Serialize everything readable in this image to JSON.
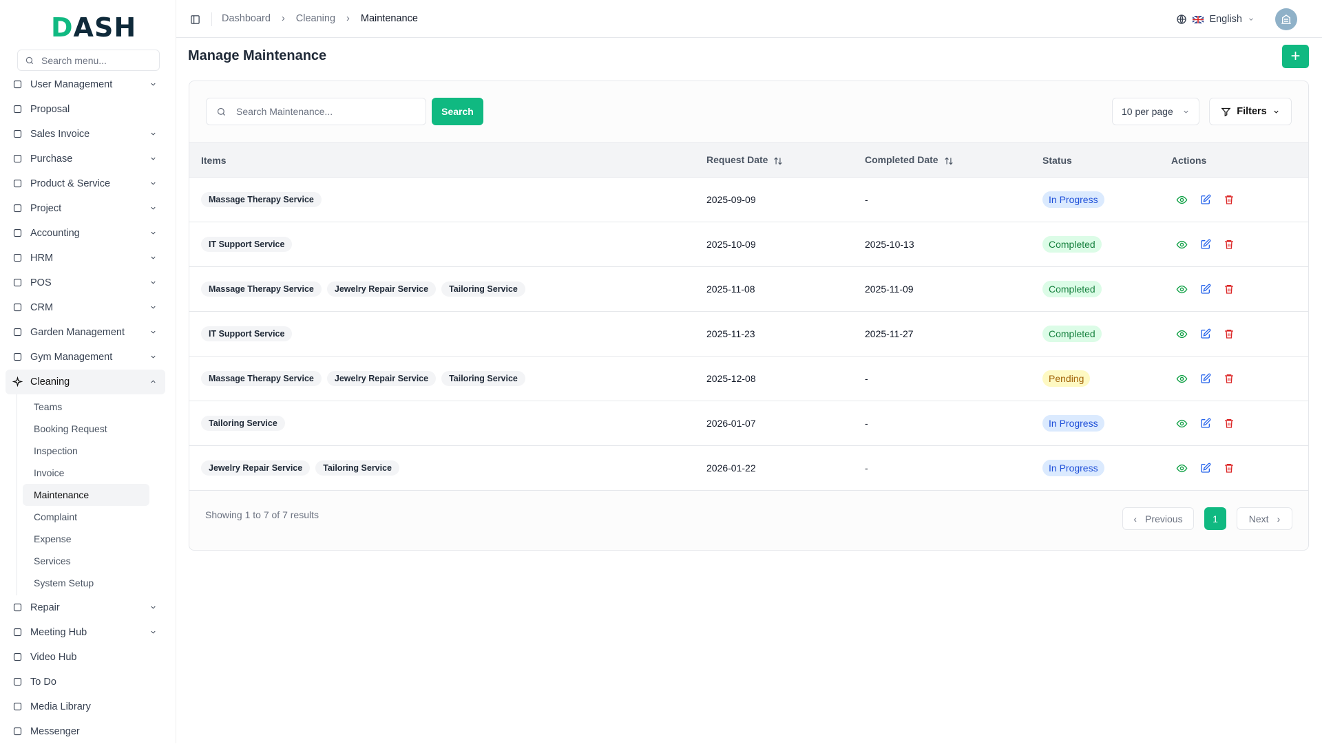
{
  "brand": {
    "logo_text": "DASH"
  },
  "sidebar": {
    "search_placeholder": "Search menu...",
    "items": [
      {
        "label": "User Management",
        "icon": "users-icon",
        "chevron": true
      },
      {
        "label": "Proposal",
        "icon": "proposal-icon",
        "chevron": false
      },
      {
        "label": "Sales Invoice",
        "icon": "invoice-icon",
        "chevron": true
      },
      {
        "label": "Purchase",
        "icon": "cart-icon",
        "chevron": true
      },
      {
        "label": "Product & Service",
        "icon": "layers-icon",
        "chevron": true
      },
      {
        "label": "Project",
        "icon": "folder-icon",
        "chevron": true
      },
      {
        "label": "Accounting",
        "icon": "calculator-icon",
        "chevron": true
      },
      {
        "label": "HRM",
        "icon": "user-cog-icon",
        "chevron": true
      },
      {
        "label": "POS",
        "icon": "store-icon",
        "chevron": true
      },
      {
        "label": "CRM",
        "icon": "contact-icon",
        "chevron": true
      },
      {
        "label": "Garden Management",
        "icon": "sprout-icon",
        "chevron": true
      },
      {
        "label": "Gym Management",
        "icon": "dumbbell-icon",
        "chevron": true
      },
      {
        "label": "Cleaning",
        "icon": "sparkle-icon",
        "chevron": true,
        "open": true
      }
    ],
    "cleaning_sub": [
      "Teams",
      "Booking Request",
      "Inspection",
      "Invoice",
      "Maintenance",
      "Complaint",
      "Expense",
      "Services",
      "System Setup"
    ],
    "active_sub": "Maintenance",
    "items_after": [
      {
        "label": "Repair",
        "icon": "hammer-icon",
        "chevron": true
      },
      {
        "label": "Meeting Hub",
        "icon": "users-icon",
        "chevron": true
      },
      {
        "label": "Video Hub",
        "icon": "video-icon",
        "chevron": false
      },
      {
        "label": "To Do",
        "icon": "checkbox-icon",
        "chevron": false
      },
      {
        "label": "Media Library",
        "icon": "image-icon",
        "chevron": false
      },
      {
        "label": "Messenger",
        "icon": "message-icon",
        "chevron": false
      }
    ]
  },
  "header": {
    "breadcrumb": [
      "Dashboard",
      "Cleaning",
      "Maintenance"
    ],
    "language": "English"
  },
  "page": {
    "title": "Manage Maintenance",
    "search_placeholder": "Search Maintenance...",
    "search_label": "Search",
    "per_page": "10 per page",
    "filters_label": "Filters"
  },
  "table": {
    "columns": [
      "Items",
      "Request Date",
      "Completed Date",
      "Status",
      "Actions"
    ],
    "rows": [
      {
        "items": [
          "Massage Therapy Service"
        ],
        "request": "2025-09-09",
        "completed": "-",
        "status": "In Progress"
      },
      {
        "items": [
          "IT Support Service"
        ],
        "request": "2025-10-09",
        "completed": "2025-10-13",
        "status": "Completed"
      },
      {
        "items": [
          "Massage Therapy Service",
          "Jewelry Repair Service",
          "Tailoring Service"
        ],
        "request": "2025-11-08",
        "completed": "2025-11-09",
        "status": "Completed"
      },
      {
        "items": [
          "IT Support Service"
        ],
        "request": "2025-11-23",
        "completed": "2025-11-27",
        "status": "Completed"
      },
      {
        "items": [
          "Massage Therapy Service",
          "Jewelry Repair Service",
          "Tailoring Service"
        ],
        "request": "2025-12-08",
        "completed": "-",
        "status": "Pending"
      },
      {
        "items": [
          "Tailoring Service"
        ],
        "request": "2026-01-07",
        "completed": "-",
        "status": "In Progress"
      },
      {
        "items": [
          "Jewelry Repair Service",
          "Tailoring Service"
        ],
        "request": "2026-01-22",
        "completed": "-",
        "status": "In Progress"
      }
    ]
  },
  "status_colors": {
    "In Progress": {
      "bg": "#dbeafe",
      "fg": "#1d4ed8"
    },
    "Completed": {
      "bg": "#dcfce7",
      "fg": "#15803d"
    },
    "Pending": {
      "bg": "#fef9c3",
      "fg": "#a16207"
    }
  },
  "pagination": {
    "summary": "Showing 1 to 7 of 7 results",
    "previous": "Previous",
    "current": "1",
    "next": "Next"
  },
  "colors": {
    "accent": "#10b981",
    "view": "#16a34a",
    "edit": "#2563eb",
    "delete": "#dc2626"
  }
}
